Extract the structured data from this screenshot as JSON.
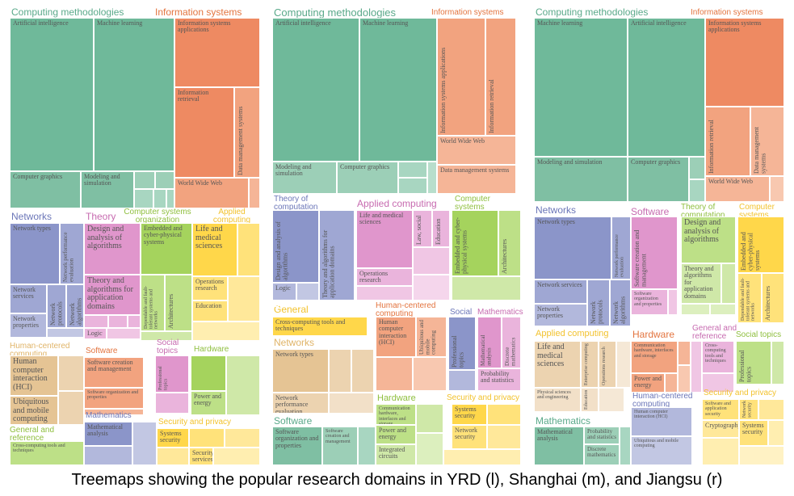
{
  "colors": {
    "computing_methodologies": "#7fbfa3",
    "information_systems": "#ee8a62",
    "networks": "#8b95c9",
    "theory": "#e096cc",
    "computer_systems": "#a5d35d",
    "applied_computing": "#ffd74a",
    "software": "#e5c494",
    "hci": "#e5c494",
    "mathematics": "#8b95c9",
    "security": "#ffd74a",
    "social": "#8b95c9",
    "general": "#a5d35d",
    "hardware": "#a5d35d"
  },
  "left": {
    "headers": {
      "computing_methodologies": "Computing methodologies",
      "information_systems": "Information systems",
      "networks": "Networks",
      "theory": "Theory",
      "computer_systems": "Computer systems organization",
      "applied_computing": "Applied computing",
      "human_centered": "Human-centered computing",
      "software": "Software",
      "social_topics": "Social topics",
      "hardware": "Hardware",
      "general": "General and reference",
      "mathematics": "Mathematics",
      "security": "Security and privacy"
    },
    "cells": {
      "ai": "Artificial intelligence",
      "ml": "Machine learning",
      "isa": "Information systems applications",
      "ir": "Information retrieval",
      "dms": "Data management systems",
      "cg": "Computer graphics",
      "ms": "Modeling and simulation",
      "www": "World Wide Web",
      "nt": "Network types",
      "npe": "Network performance evaluation",
      "ns": "Network services",
      "np": "Network protocols",
      "na": "Network algorithms",
      "nprop": "Network properties",
      "daa": "Design and analysis of algorithms",
      "tap": "Theory and algorithms for application domains",
      "logic": "Logic",
      "ecs": "Embedded and cyber-physical systems",
      "dft": "Dependable and fault-tolerant systems and networks",
      "arch": "Architectures",
      "lms": "Life and medical sciences",
      "or": "Operations research",
      "edu": "Education",
      "hci": "Human computer interaction (HCI)",
      "umc": "Ubiquitous and mobile computing",
      "scm": "Software creation and management",
      "sop": "Software organization and properties",
      "prof": "Professional topics",
      "pe": "Power and energy",
      "cct": "Cross-computing tools and techniques",
      "mathan": "Mathematical analysis",
      "ssec": "Systems security",
      "secserv": "Security services"
    }
  },
  "middle": {
    "headers": {
      "computing_methodologies": "Computing methodologies",
      "information_systems": "Information systems",
      "theory": "Theory of computation",
      "applied_computing": "Applied computing",
      "computer_systems": "Computer systems",
      "general": "General",
      "human_centered": "Human-centered computing",
      "social": "Social",
      "mathematics": "Mathematics",
      "networks": "Networks",
      "hardware": "Hardware",
      "security": "Security and privacy",
      "software": "Software"
    },
    "cells": {
      "ai": "Artificial intelligence",
      "ml": "Machine learning",
      "isa": "Information systems applications",
      "ir": "Information retrieval",
      "www": "World Wide Web",
      "dms": "Data management systems",
      "ms": "Modeling and simulation",
      "cg": "Computer graphics",
      "daa": "Design and analysis of algorithms",
      "tap": "Theory and algorithms for application domains",
      "logic": "Logic",
      "lms": "Life and medical sciences",
      "law": "Law, social",
      "edu": "Education",
      "ecs": "Embedded and cyber-physical systems",
      "arch": "Architectures",
      "or": "Operations research",
      "cct": "Cross-computing tools and techniques",
      "hci": "Human computer interaction (HCI)",
      "uc": "Ubiquitous and mobile computing",
      "prof": "Professional topics",
      "mathan": "Mathematical analysis",
      "dm": "Discrete mathematics",
      "ps": "Probability and statistics",
      "nt": "Network types",
      "npe": "Network performance evaluation",
      "chi": "Communication hardware, interfaces and storage",
      "pe": "Power and energy",
      "ic": "Integrated circuits",
      "ssec": "Systems security",
      "nsec": "Network security",
      "sop": "Software organization and properties",
      "scm": "Software creation and management"
    }
  },
  "right": {
    "headers": {
      "computing_methodologies": "Computing methodologies",
      "information_systems": "Information systems",
      "networks": "Networks",
      "software": "Software",
      "theory": "Theory of computation",
      "computer_systems": "Computer systems",
      "applied_computing": "Applied computing",
      "hardware": "Hardware",
      "general": "General and reference",
      "social": "Social topics",
      "human_centered": "Human-centered computing",
      "security": "Security and privacy",
      "mathematics": "Mathematics"
    },
    "cells": {
      "ml": "Machine learning",
      "ai": "Artificial intelligence",
      "isa": "Information systems applications",
      "ir": "Information retrieval",
      "dms": "Data management systems",
      "ms": "Modeling and simulation",
      "cg": "Computer graphics",
      "www": "World Wide Web",
      "nt": "Network types",
      "npe": "Network performance evaluation",
      "ns": "Network services",
      "np": "Network protocols",
      "na": "Network algorithms",
      "nprop": "Network properties",
      "scm": "Software creation and management",
      "sop": "Software organization and properties",
      "daa": "Design and analysis of algorithms",
      "tap": "Theory and algorithms for application domains",
      "ecs": "Embedded and cyber-physical systems",
      "dft": "Dependable and fault-tolerant systems and networks",
      "arch": "Architectures",
      "lms": "Life and medical sciences",
      "ec": "Enterprise computing",
      "orr": "Operations research",
      "pse": "Physical sciences and engineering",
      "edu": "Education",
      "chi": "Communication hardware, interfaces and storage",
      "pe": "Power and energy",
      "cct": "Cross-computing tools and techniques",
      "prof": "Professional topics",
      "hci": "Human computer interaction (HCI)",
      "uc": "Ubiquitous and mobile computing",
      "sas": "Software and application security",
      "nsec": "Network security",
      "crypto": "Cryptography",
      "ssec": "Systems security",
      "mathan": "Mathematical analysis",
      "ps": "Probability and statistics",
      "dm": "Discrete mathematics"
    }
  },
  "caption": "Treemaps showing the popular research domains in YRD (l), Shanghai (m), and Jiangsu (r)"
}
